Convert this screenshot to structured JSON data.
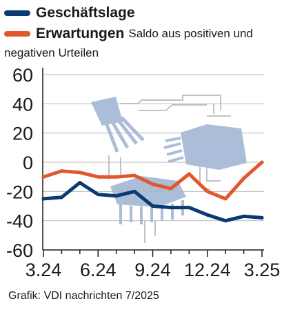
{
  "chart_data": {
    "type": "line",
    "x": [
      "3.24",
      "4.24",
      "5.24",
      "6.24",
      "7.24",
      "8.24",
      "9.24",
      "10.24",
      "11.24",
      "12.24",
      "1.25",
      "2.25",
      "3.25"
    ],
    "x_tick_labels": [
      "3.24",
      "6.24",
      "9.24",
      "12.24",
      "3.25"
    ],
    "y_ticks": [
      60,
      40,
      20,
      0,
      -20,
      -40,
      -60
    ],
    "y_tick_labels": [
      "60",
      "40",
      "20",
      "0",
      "-20",
      "-40",
      "-60"
    ],
    "ylim": [
      -60,
      60
    ],
    "grid": "horizontal",
    "legend_position": "top-left",
    "series": [
      {
        "name": "Geschäftslage",
        "color": "#0b3a73",
        "values": [
          -25,
          -24,
          -14,
          -22,
          -23,
          -20,
          -30,
          -31,
          -31,
          -36,
          -40,
          -37,
          -38
        ]
      },
      {
        "name": "Erwartungen",
        "color": "#e2572b",
        "values": [
          -10,
          -6,
          -7,
          -10,
          -10,
          -9,
          -15,
          -18,
          -8,
          -20,
          -25,
          -11,
          0
        ]
      }
    ]
  },
  "legend": {
    "items": [
      {
        "label": "Geschäftslage",
        "color": "#0b3a73"
      },
      {
        "label": "Erwartungen",
        "color": "#e2572b",
        "note": "Saldo aus positiven und",
        "note2": "negativen Urteilen"
      }
    ]
  },
  "source": "Grafik: VDI nachrichten 7/2025",
  "colors": {
    "grid": "#b9b9b9",
    "axis": "#1a1a1a",
    "illustration": "#9fb3d1"
  }
}
